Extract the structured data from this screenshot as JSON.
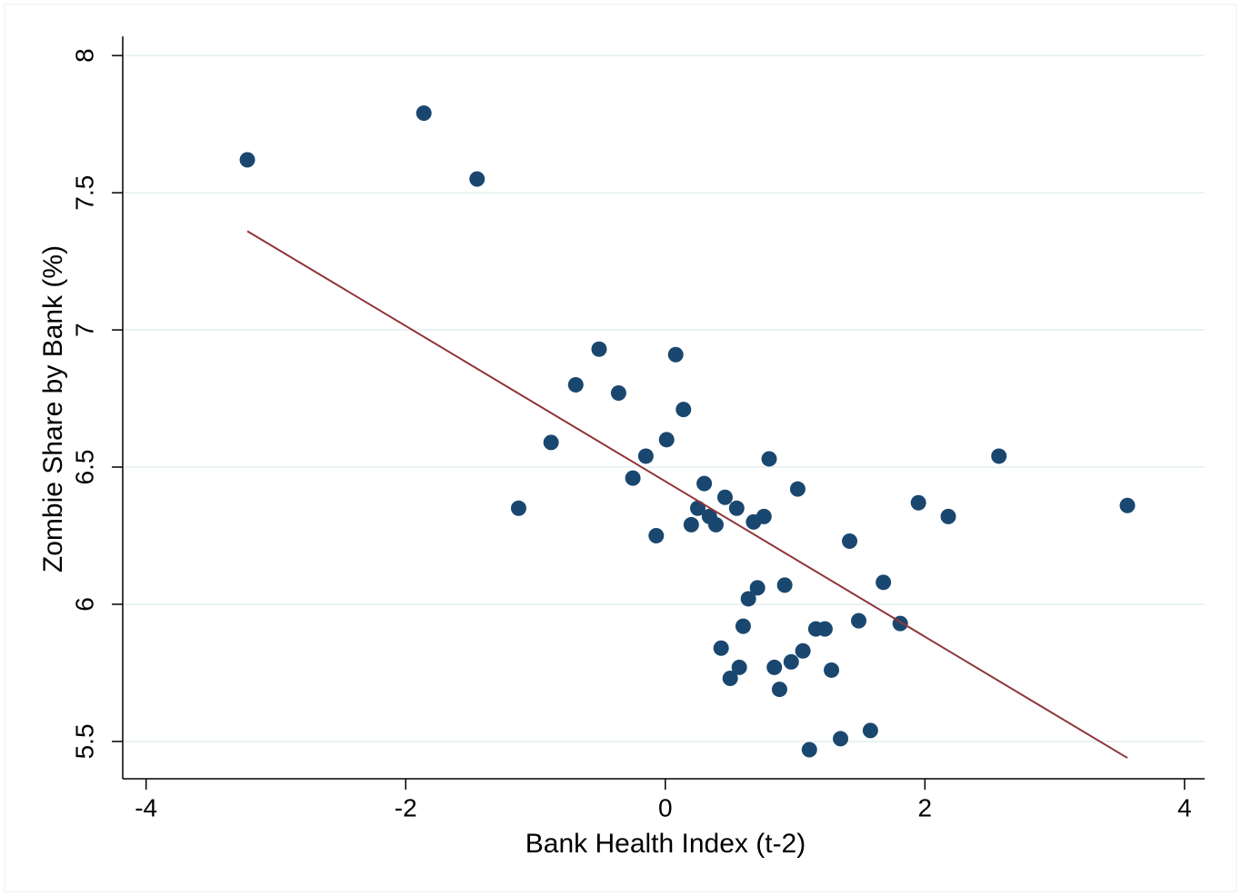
{
  "chart_data": {
    "type": "scatter",
    "x_label": "Bank Health Index (t-2)",
    "y_label": "Zombie Share by Bank (%)",
    "xlim": [
      -4.18,
      4.155
    ],
    "ylim": [
      5.364,
      8.07
    ],
    "xticks": [
      -4,
      -2,
      0,
      2,
      4
    ],
    "yticks": [
      5.5,
      6,
      6.5,
      7,
      7.5,
      8
    ],
    "grid": true,
    "series": [
      {
        "type": "scatter",
        "color": "#1a476f",
        "x": [
          -3.22,
          -1.86,
          -1.45,
          -1.13,
          -0.88,
          -0.69,
          -0.51,
          -0.36,
          -0.25,
          -0.15,
          -0.07,
          0.01,
          0.08,
          0.14,
          0.2,
          0.25,
          0.3,
          0.34,
          0.39,
          0.43,
          0.46,
          0.5,
          0.55,
          0.57,
          0.6,
          0.64,
          0.68,
          0.71,
          0.76,
          0.8,
          0.84,
          0.88,
          0.92,
          0.97,
          1.02,
          1.06,
          1.11,
          1.16,
          1.23,
          1.28,
          1.35,
          1.42,
          1.49,
          1.58,
          1.68,
          1.81,
          1.95,
          2.18,
          2.57,
          3.56
        ],
        "y": [
          7.62,
          7.79,
          7.55,
          6.35,
          6.59,
          6.8,
          6.93,
          6.77,
          6.46,
          6.54,
          6.25,
          6.6,
          6.91,
          6.71,
          6.29,
          6.35,
          6.44,
          6.32,
          6.29,
          5.84,
          6.39,
          5.73,
          6.35,
          5.77,
          5.92,
          6.02,
          6.3,
          6.06,
          6.32,
          6.53,
          5.77,
          5.69,
          6.07,
          5.79,
          6.42,
          5.83,
          5.47,
          5.91,
          5.91,
          5.76,
          5.51,
          6.23,
          5.94,
          5.54,
          6.08,
          5.93,
          6.37,
          6.32,
          6.54,
          6.36
        ]
      },
      {
        "type": "line",
        "color": "#90353b",
        "x": [
          -3.22,
          3.56
        ],
        "y": [
          7.36,
          5.44
        ]
      }
    ]
  }
}
